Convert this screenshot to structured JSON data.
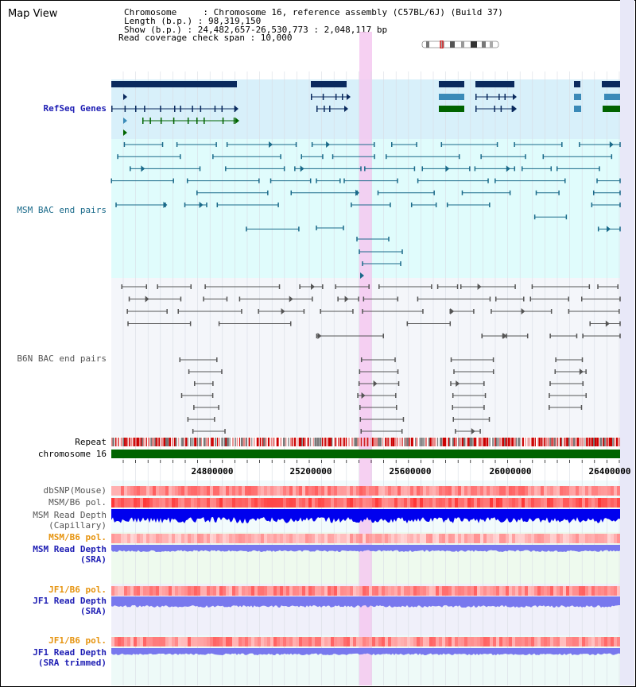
{
  "title": "Map View",
  "info": {
    "chromosome": "Chromosome     : Chromosome 16, reference assembly (C57BL/6J) (Build 37)",
    "length": "Length (b.p.) : 98,319,150",
    "show": "Show (b.p.) : 24,482,657-26,530,773 : 2,048,117 bp",
    "span": "Read coverage check span : 10,000"
  },
  "tracks": {
    "refseq": "RefSeq Genes",
    "msm_bac": "MSM BAC end pairs",
    "b6n_bac": "B6N BAC end pairs",
    "repeat": "Repeat",
    "chrom": "chromosome 16",
    "dbsnp": "dbSNP(Mouse)",
    "msm_b6_pol_1": "MSM/B6 pol.",
    "msm_depth_cap_1": "MSM Read Depth",
    "msm_depth_cap_2": "(Capillary)",
    "msm_b6_pol_2": "MSM/B6 pol.",
    "msm_depth_sra_1": "MSM Read Depth",
    "msm_depth_sra_2": "(SRA)",
    "jf1_pol_1": "JF1/B6 pol.",
    "jf1_depth_1": "JF1 Read Depth",
    "jf1_depth_2": "(SRA)",
    "jf1_pol_2": "JF1/B6 pol.",
    "jf1_trim_1": "JF1 Read Depth",
    "jf1_trim_2": "(SRA trimmed)"
  },
  "axis_ticks": [
    "24800000",
    "25200000",
    "25600000",
    "26000000",
    "26400000"
  ],
  "colors": {
    "refseq_dark": "#0a2a5e",
    "refseq_mid": "#3a8ab8",
    "refseq_green": "#006400",
    "msm_bac": "#1a6a8a",
    "b6n_bac": "#555555",
    "highlight": "#f4c8f0",
    "depth_capillary": "#0000ee",
    "depth_sra": "#7878ee"
  }
}
